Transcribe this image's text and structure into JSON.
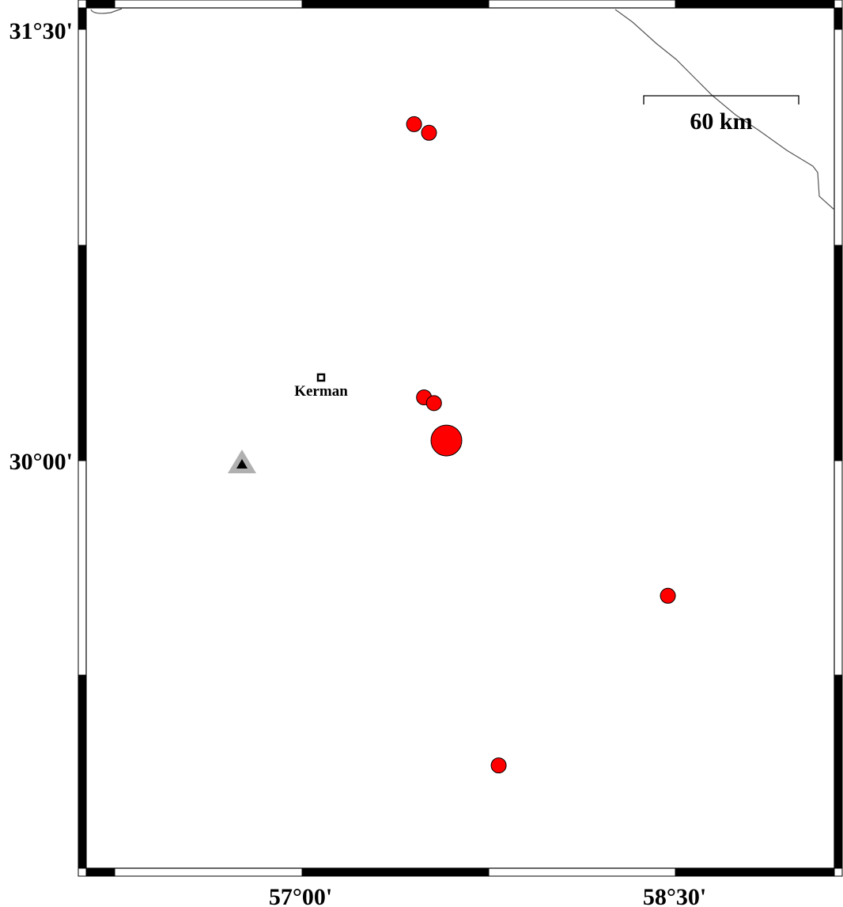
{
  "map": {
    "axes": {
      "x_ticks": [
        "57°00'",
        "58°30'"
      ],
      "y_ticks": [
        "31°30'",
        "30°00'"
      ]
    },
    "scale_bar": {
      "label": "60 km"
    },
    "city": {
      "name": "Kerman",
      "symbol": "square"
    },
    "station": {
      "symbol": "triangle",
      "colors": {
        "outer": "#b0b0b0",
        "inner": "#000000"
      }
    },
    "events": [
      {
        "lon": 57.45,
        "lat": 31.17,
        "size": "small"
      },
      {
        "lon": 57.51,
        "lat": 31.14,
        "size": "small"
      },
      {
        "lon": 57.49,
        "lat": 30.22,
        "size": "small"
      },
      {
        "lon": 57.53,
        "lat": 30.2,
        "size": "small"
      },
      {
        "lon": 57.58,
        "lat": 30.07,
        "size": "large"
      },
      {
        "lon": 58.47,
        "lat": 29.53,
        "size": "small"
      },
      {
        "lon": 57.79,
        "lat": 28.94,
        "size": "small"
      }
    ],
    "colors": {
      "event_fill": "#ff0000",
      "coastline": "#555555",
      "frame": "#000000"
    }
  }
}
